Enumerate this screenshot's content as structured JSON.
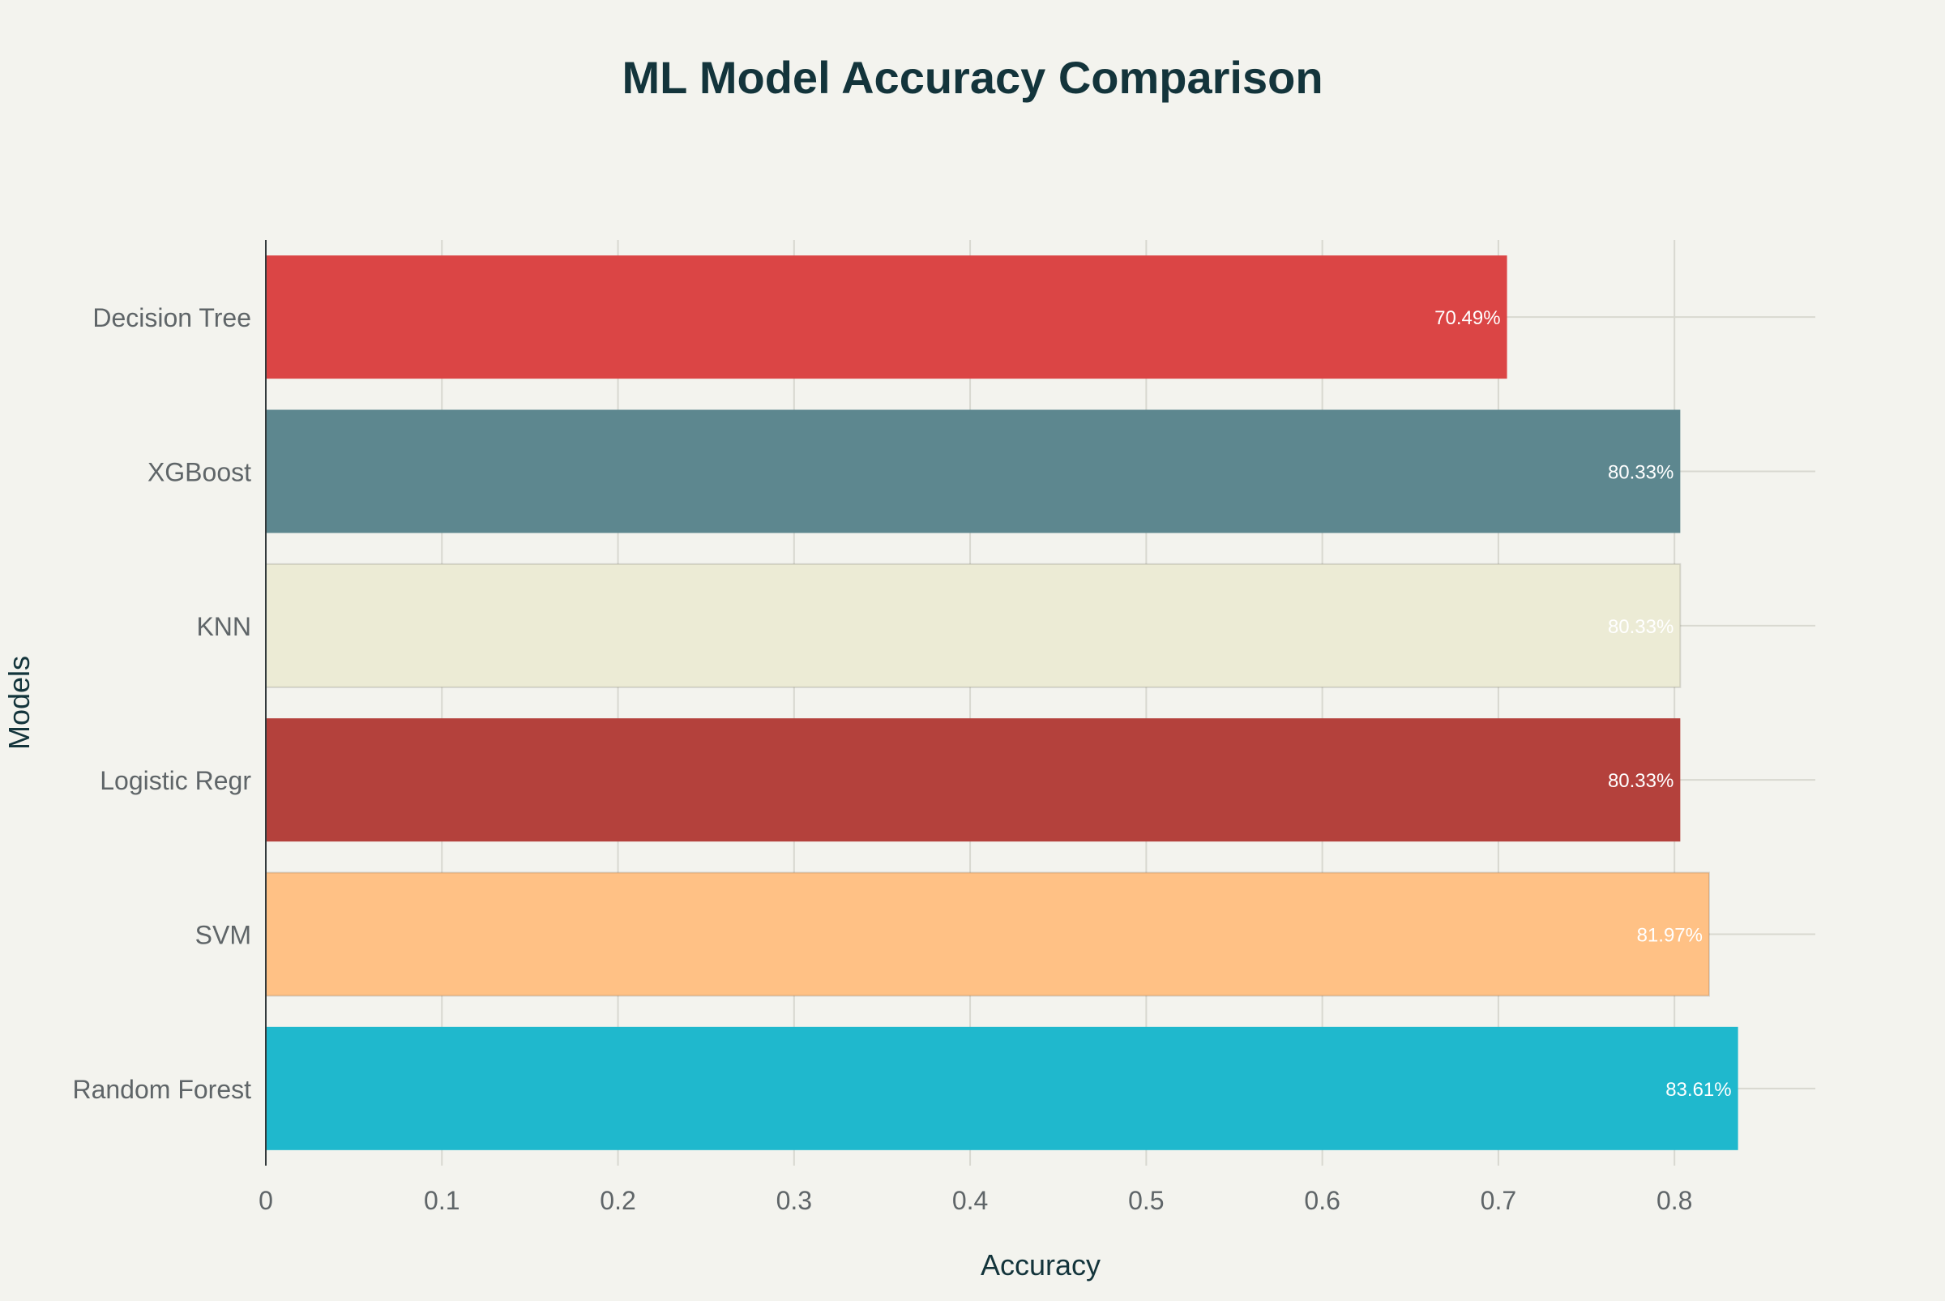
{
  "chart_data": {
    "type": "bar",
    "orientation": "horizontal",
    "title": "ML Model Accuracy Comparison",
    "xlabel": "Accuracy",
    "ylabel": "Models",
    "xlim": [
      0,
      0.88
    ],
    "x_ticks": [
      0,
      0.1,
      0.2,
      0.3,
      0.4,
      0.5,
      0.6,
      0.7,
      0.8
    ],
    "x_tick_labels": [
      "0",
      "0.1",
      "0.2",
      "0.3",
      "0.4",
      "0.5",
      "0.6",
      "0.7",
      "0.8"
    ],
    "grid": true,
    "categories": [
      "Decision Tree",
      "XGBoost",
      "KNN",
      "Logistic Regr",
      "SVM",
      "Random Forest"
    ],
    "values": [
      0.7049,
      0.8033,
      0.8033,
      0.8033,
      0.8197,
      0.8361
    ],
    "data_labels": [
      "70.49%",
      "80.33%",
      "80.33%",
      "80.33%",
      "81.97%",
      "83.61%"
    ],
    "colors": [
      "#db4545",
      "#5d878f",
      "#ecebd5",
      "#b4413c",
      "#ffc185",
      "#1fb8cd"
    ],
    "label_color": "#ffffff",
    "text_color": "#13343b",
    "tick_color": "#5f6568",
    "grid_color": "#d8d8d0"
  }
}
